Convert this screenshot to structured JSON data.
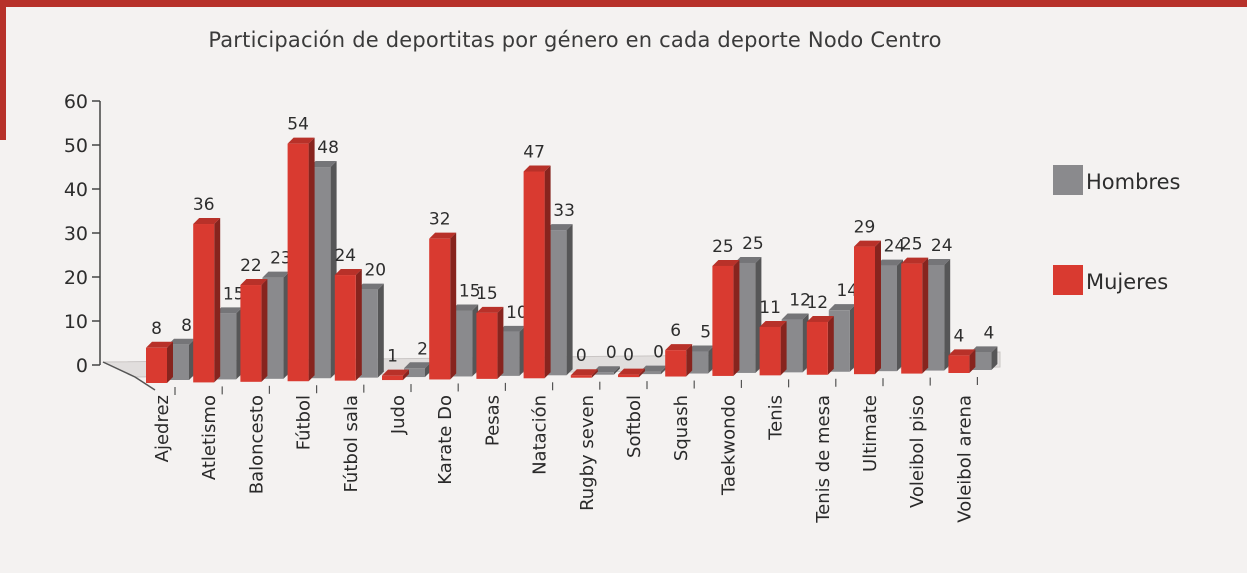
{
  "chart_data": {
    "type": "bar",
    "title": "Participación de deportitas por género en cada deporte Nodo Centro",
    "ylim": [
      0,
      60
    ],
    "yticks": [
      "0",
      "10",
      "20",
      "30",
      "40",
      "50",
      "60"
    ],
    "categories": [
      "Ajedrez",
      "Atletismo",
      "Baloncesto",
      "Fútbol",
      "Fútbol sala",
      "Judo",
      "Karate Do",
      "Pesas",
      "Natación",
      "Rugby seven",
      "Softbol",
      "Squash",
      "Taekwondo",
      "Tenis",
      "Tenis de mesa",
      "Ultimate",
      "Voleibol piso",
      "Voleibol arena"
    ],
    "series": [
      {
        "name": "Mujeres",
        "color": "#d93a30",
        "values": [
          8,
          36,
          22,
          54,
          24,
          1,
          32,
          15,
          47,
          0,
          0,
          6,
          25,
          11,
          12,
          29,
          25,
          4
        ]
      },
      {
        "name": "Hombres",
        "color": "#8a8a8d",
        "values": [
          8,
          15,
          23,
          48,
          20,
          2,
          15,
          10,
          33,
          0,
          0,
          5,
          25,
          12,
          14,
          24,
          24,
          4
        ]
      }
    ],
    "legend_position": "right",
    "grid": false
  }
}
